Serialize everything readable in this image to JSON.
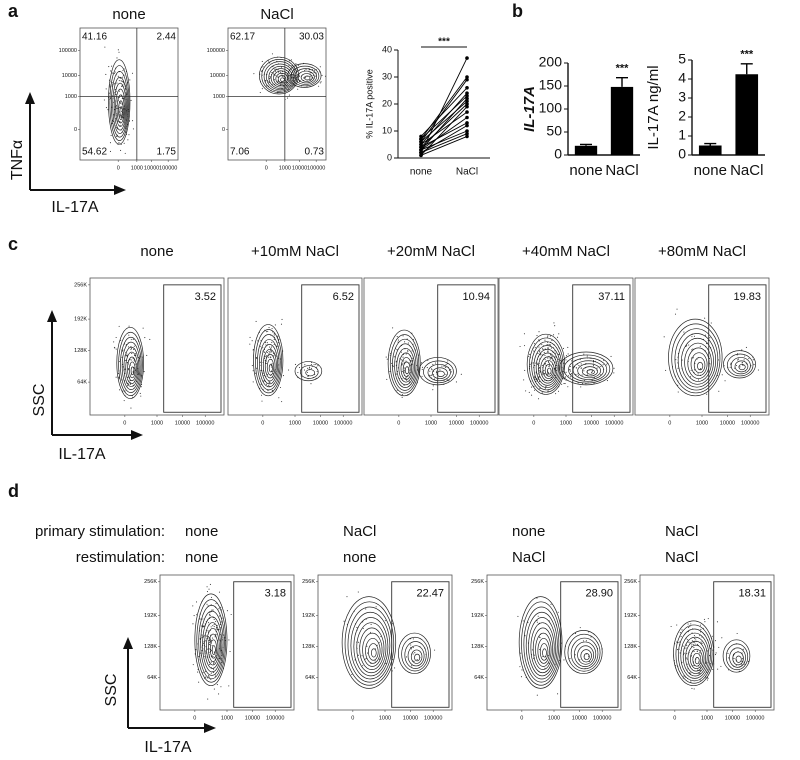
{
  "panel_labels": [
    "a",
    "b",
    "c",
    "d"
  ],
  "flow_ticks": {
    "ssc": [
      "256K",
      "192K",
      "128K",
      "64K"
    ],
    "fl": [
      "0",
      "1000",
      "10000",
      "100000"
    ],
    "log": [
      "100000",
      "10000",
      "1000",
      "0"
    ]
  },
  "panel_a": {
    "y_axis": "TNFα",
    "x_axis": "IL-17A",
    "plots": [
      {
        "title": "none",
        "quadrants": [
          "41.16",
          "2.44",
          "54.62",
          "1.75"
        ]
      },
      {
        "title": "NaCl",
        "quadrants": [
          "62.17",
          "30.03",
          "7.06",
          "0.73"
        ]
      }
    ]
  },
  "chart_data": [
    {
      "type": "line",
      "y_label": "% IL-17A positive",
      "annotation": "***",
      "categories": [
        "none",
        "NaCl"
      ],
      "color": "#000000",
      "ylim": [
        0,
        40
      ],
      "yticks": [
        0,
        10,
        20,
        30,
        40
      ],
      "series": [
        {
          "values": [
            1,
            8
          ]
        },
        {
          "values": [
            2,
            9
          ]
        },
        {
          "values": [
            3,
            10
          ]
        },
        {
          "values": [
            2,
            12
          ]
        },
        {
          "values": [
            4,
            13
          ]
        },
        {
          "values": [
            3,
            15
          ]
        },
        {
          "values": [
            5,
            17
          ]
        },
        {
          "values": [
            1,
            19
          ]
        },
        {
          "values": [
            4,
            20
          ]
        },
        {
          "values": [
            6,
            21
          ]
        },
        {
          "values": [
            3,
            22
          ]
        },
        {
          "values": [
            7,
            23
          ]
        },
        {
          "values": [
            5,
            24
          ]
        },
        {
          "values": [
            8,
            26
          ]
        },
        {
          "values": [
            6,
            29
          ]
        },
        {
          "values": [
            7,
            30
          ]
        },
        {
          "values": [
            2,
            37
          ]
        }
      ]
    },
    {
      "type": "bar",
      "y_label": "IL-17A",
      "y_label_italic": true,
      "annotation": "***",
      "categories": [
        "none",
        "NaCl"
      ],
      "color": "#000000",
      "values": [
        20,
        148
      ],
      "errors": [
        3,
        20
      ],
      "ylim": [
        0,
        200
      ],
      "yticks": [
        0,
        50,
        100,
        150,
        200
      ]
    },
    {
      "type": "bar",
      "y_label": "IL-17A  ng/ml",
      "y_label_italic": false,
      "annotation": "***",
      "categories": [
        "none",
        "NaCl"
      ],
      "color": "#000000",
      "values": [
        0.5,
        4.25
      ],
      "errors": [
        0.1,
        0.55
      ],
      "ylim": [
        0,
        5
      ],
      "yticks": [
        0,
        1,
        2,
        3,
        4,
        5
      ]
    }
  ],
  "panel_c": {
    "y_axis": "SSC",
    "x_axis": "IL-17A",
    "plots": [
      {
        "title": "none",
        "gate": "3.52"
      },
      {
        "title": "+10mM NaCl",
        "gate": "6.52"
      },
      {
        "title": "+20mM NaCl",
        "gate": "10.94"
      },
      {
        "title": "+40mM NaCl",
        "gate": "37.11"
      },
      {
        "title": "+80mM NaCl",
        "gate": "19.83"
      }
    ]
  },
  "panel_d": {
    "y_axis": "SSC",
    "x_axis": "IL-17A",
    "row_labels": [
      "primary stimulation:",
      "restimulation:"
    ],
    "plots": [
      {
        "primary": "none",
        "restimulation": "none",
        "gate": "3.18"
      },
      {
        "primary": "NaCl",
        "restimulation": "none",
        "gate": "22.47"
      },
      {
        "primary": "none",
        "restimulation": "NaCl",
        "gate": "28.90"
      },
      {
        "primary": "NaCl",
        "restimulation": "NaCl",
        "gate": "18.31"
      }
    ]
  }
}
